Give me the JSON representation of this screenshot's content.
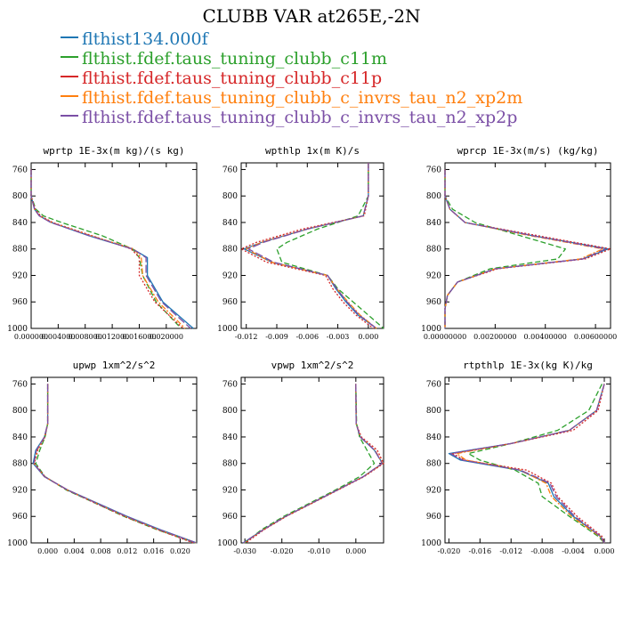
{
  "title": "CLUBB VAR at265E,-2N",
  "legend": [
    {
      "label": "flthist134.000f",
      "color": "#1f77b4",
      "dash": "solid"
    },
    {
      "label": "flthist.fdef.taus_tuning_clubb_c11m",
      "color": "#2ca02c",
      "dash": "dashed"
    },
    {
      "label": "flthist.fdef.taus_tuning_clubb_c11p",
      "color": "#d62728",
      "dash": "dotted"
    },
    {
      "label": "flthist.fdef.taus_tuning_clubb_c_invrs_tau_n2_xp2m",
      "color": "#ff7f0e",
      "dash": "dashdot"
    },
    {
      "label": "flthist.fdef.taus_tuning_clubb_c_invrs_tau_n2_xp2p",
      "color": "#7b4fa6",
      "dash": "longdash"
    }
  ],
  "chart_data": [
    {
      "type": "line",
      "title": "wprtp  1E-3x(m kg)/(s kg)",
      "ylabel": "",
      "ylim": [
        1000,
        750
      ],
      "yticks": [
        "760",
        "800",
        "840",
        "880",
        "920",
        "960",
        "1000"
      ],
      "yticks_values": [
        760,
        800,
        840,
        880,
        920,
        960,
        1000
      ],
      "xlim": [
        0,
        0.0245
      ],
      "xticks": [
        "0.000000",
        "0.004000",
        "0.008000",
        "0.012000",
        "0.016000",
        "0.020000"
      ],
      "xticks_values": [
        0,
        0.004,
        0.008,
        0.012,
        0.016,
        0.02
      ],
      "y": [
        760,
        800,
        820,
        830,
        840,
        860,
        880,
        893,
        920,
        960,
        1000
      ],
      "series": [
        {
          "values": [
            0,
            0,
            0.0005,
            0.0012,
            0.003,
            0.0085,
            0.015,
            0.0172,
            0.0172,
            0.0195,
            0.024
          ]
        },
        {
          "values": [
            0,
            0,
            0.0007,
            0.0018,
            0.0045,
            0.0105,
            0.015,
            0.016,
            0.0165,
            0.0185,
            0.0222
          ]
        },
        {
          "values": [
            0,
            0,
            0.0006,
            0.0014,
            0.0032,
            0.009,
            0.0148,
            0.016,
            0.016,
            0.0183,
            0.0225
          ]
        },
        {
          "values": [
            0,
            0,
            0.0005,
            0.0012,
            0.003,
            0.0088,
            0.0152,
            0.0163,
            0.0165,
            0.0188,
            0.0228
          ]
        },
        {
          "values": [
            0,
            0,
            0.0005,
            0.0012,
            0.0029,
            0.0086,
            0.015,
            0.017,
            0.017,
            0.0193,
            0.0236
          ]
        }
      ]
    },
    {
      "type": "line",
      "title": "wpthlp  1x(m K)/s",
      "ylim": [
        1000,
        750
      ],
      "yticks": [
        "760",
        "800",
        "840",
        "880",
        "920",
        "960",
        "1000"
      ],
      "yticks_values": [
        760,
        800,
        840,
        880,
        920,
        960,
        1000
      ],
      "xlim": [
        -0.0125,
        0.0015
      ],
      "xticks": [
        "-0.012",
        "-0.009",
        "-0.006",
        "-0.003",
        "0.000"
      ],
      "xticks_values": [
        -0.012,
        -0.009,
        -0.006,
        -0.003,
        0.0
      ],
      "y": [
        750,
        800,
        830,
        850,
        870,
        880,
        900,
        920,
        940,
        960,
        980,
        1000
      ],
      "series": [
        {
          "values": [
            0,
            0,
            -0.0005,
            -0.006,
            -0.0105,
            -0.0122,
            -0.0095,
            -0.004,
            -0.0032,
            -0.0022,
            -0.001,
            0.0008
          ]
        },
        {
          "values": [
            0,
            0,
            -0.001,
            -0.005,
            -0.008,
            -0.009,
            -0.0085,
            -0.004,
            -0.003,
            -0.0015,
            0.0,
            0.0015
          ]
        },
        {
          "values": [
            0,
            0,
            -0.0004,
            -0.0065,
            -0.011,
            -0.0125,
            -0.01,
            -0.0042,
            -0.0035,
            -0.0025,
            -0.0012,
            0.0005
          ]
        },
        {
          "values": [
            0,
            0,
            -0.0005,
            -0.006,
            -0.0105,
            -0.012,
            -0.0095,
            -0.004,
            -0.0031,
            -0.002,
            -0.0008,
            0.0008
          ]
        },
        {
          "values": [
            0,
            0,
            -0.0005,
            -0.006,
            -0.0103,
            -0.0118,
            -0.0093,
            -0.004,
            -0.0031,
            -0.0021,
            -0.0009,
            0.0008
          ]
        }
      ]
    },
    {
      "type": "line",
      "title": "wprcp  1E-3x(m/s) (kg/kg)",
      "ylim": [
        1000,
        750
      ],
      "yticks": [
        "760",
        "800",
        "840",
        "880",
        "920",
        "960",
        "1000"
      ],
      "yticks_values": [
        760,
        800,
        840,
        880,
        920,
        960,
        1000
      ],
      "xlim": [
        0,
        0.0066
      ],
      "xticks": [
        "0.00000000",
        "0.00200000",
        "0.00400000",
        "0.00600000"
      ],
      "xticks_values": [
        0,
        0.002,
        0.004,
        0.006
      ],
      "y": [
        760,
        800,
        820,
        840,
        860,
        880,
        895,
        910,
        930,
        950,
        970,
        1000
      ],
      "series": [
        {
          "values": [
            0,
            0,
            0.0002,
            0.0008,
            0.0035,
            0.0065,
            0.0055,
            0.002,
            0.0005,
            0.0001,
            0,
            0
          ]
        },
        {
          "values": [
            0,
            0,
            0.0003,
            0.0012,
            0.003,
            0.0048,
            0.0045,
            0.0018,
            0.0005,
            0.0001,
            0,
            0
          ]
        },
        {
          "values": [
            0,
            0,
            0.0002,
            0.0008,
            0.0037,
            0.0066,
            0.0056,
            0.0021,
            0.0005,
            0.0001,
            0,
            0
          ]
        },
        {
          "values": [
            0,
            0,
            0.0002,
            0.0008,
            0.0034,
            0.0063,
            0.0054,
            0.002,
            0.0005,
            0.0001,
            0,
            0
          ]
        },
        {
          "values": [
            0,
            0,
            0.0002,
            0.0008,
            0.0035,
            0.0064,
            0.0055,
            0.002,
            0.0005,
            0.0001,
            0,
            0
          ]
        }
      ]
    },
    {
      "type": "line",
      "title": "upwp  1xm^2/s^2",
      "ylim": [
        1000,
        750
      ],
      "yticks": [
        "760",
        "800",
        "840",
        "880",
        "920",
        "960",
        "1000"
      ],
      "yticks_values": [
        760,
        800,
        840,
        880,
        920,
        960,
        1000
      ],
      "xlim": [
        -0.0025,
        0.0225
      ],
      "xticks": [
        "0.000",
        "0.004",
        "0.008",
        "0.012",
        "0.016",
        "0.020"
      ],
      "xticks_values": [
        0,
        0.004,
        0.008,
        0.012,
        0.016,
        0.02
      ],
      "y": [
        760,
        820,
        840,
        860,
        880,
        900,
        920,
        940,
        960,
        980,
        1000
      ],
      "series": [
        {
          "values": [
            0.0,
            0.0,
            -0.0005,
            -0.0018,
            -0.0022,
            -0.0005,
            0.003,
            0.0075,
            0.012,
            0.017,
            0.0225
          ]
        },
        {
          "values": [
            0.0,
            0.0,
            -0.0004,
            -0.0012,
            -0.0018,
            -0.0004,
            0.0028,
            0.0072,
            0.0115,
            0.0165,
            0.0222
          ]
        },
        {
          "values": [
            0.0,
            0.0,
            -0.0004,
            -0.0015,
            -0.002,
            -0.0004,
            0.0029,
            0.0072,
            0.0116,
            0.0166,
            0.022
          ]
        },
        {
          "values": [
            0.0,
            0.0,
            -0.0005,
            -0.0016,
            -0.0021,
            -0.0005,
            0.003,
            0.0074,
            0.0118,
            0.0168,
            0.0224
          ]
        },
        {
          "values": [
            0.0,
            0.0,
            -0.0005,
            -0.0017,
            -0.0021,
            -0.0005,
            0.003,
            0.0074,
            0.0119,
            0.0169,
            0.0224
          ]
        }
      ]
    },
    {
      "type": "line",
      "title": "vpwp  1xm^2/s^2",
      "ylim": [
        1000,
        750
      ],
      "yticks": [
        "760",
        "800",
        "840",
        "880",
        "920",
        "960",
        "1000"
      ],
      "yticks_values": [
        760,
        800,
        840,
        880,
        920,
        960,
        1000
      ],
      "xlim": [
        -0.031,
        0.0075
      ],
      "xticks": [
        "-0.030",
        "-0.020",
        "-0.010",
        "0.000"
      ],
      "xticks_values": [
        -0.03,
        -0.02,
        -0.01,
        0.0
      ],
      "y": [
        760,
        820,
        840,
        860,
        880,
        900,
        920,
        940,
        960,
        980,
        1000
      ],
      "series": [
        {
          "values": [
            0.0,
            0.0001,
            0.0012,
            0.005,
            0.0072,
            0.002,
            -0.005,
            -0.012,
            -0.019,
            -0.025,
            -0.0305
          ]
        },
        {
          "values": [
            0.0,
            0.0002,
            0.001,
            0.003,
            0.005,
            0.001,
            -0.0055,
            -0.0125,
            -0.0195,
            -0.0255,
            -0.03
          ]
        },
        {
          "values": [
            0.0,
            0.0001,
            0.0015,
            0.0058,
            0.0075,
            0.0022,
            -0.0048,
            -0.0118,
            -0.0188,
            -0.0248,
            -0.0298
          ]
        },
        {
          "values": [
            0.0,
            0.0001,
            0.0012,
            0.0052,
            0.0072,
            0.002,
            -0.005,
            -0.012,
            -0.019,
            -0.025,
            -0.0303
          ]
        },
        {
          "values": [
            0.0,
            0.0001,
            0.0012,
            0.0051,
            0.0071,
            0.002,
            -0.005,
            -0.012,
            -0.019,
            -0.025,
            -0.0304
          ]
        }
      ]
    },
    {
      "type": "line",
      "title": "rtpthlp  1E-3x(kg K)/kg",
      "ylim": [
        1000,
        750
      ],
      "yticks": [
        "760",
        "800",
        "840",
        "880",
        "920",
        "960",
        "1000"
      ],
      "yticks_values": [
        760,
        800,
        840,
        880,
        920,
        960,
        1000
      ],
      "xlim": [
        -0.0205,
        0.0008
      ],
      "xticks": [
        "-0.020",
        "-0.016",
        "-0.012",
        "-0.008",
        "-0.004",
        "0.000"
      ],
      "xticks_values": [
        -0.02,
        -0.016,
        -0.012,
        -0.008,
        -0.004,
        0.0
      ],
      "y": [
        760,
        800,
        830,
        850,
        865,
        875,
        890,
        910,
        930,
        960,
        990,
        1000
      ],
      "series": [
        {
          "values": [
            0.0,
            -0.001,
            -0.0045,
            -0.012,
            -0.02,
            -0.0185,
            -0.011,
            -0.0072,
            -0.0065,
            -0.004,
            -0.0005,
            0.0
          ]
        },
        {
          "values": [
            -0.0003,
            -0.002,
            -0.006,
            -0.012,
            -0.0175,
            -0.016,
            -0.0115,
            -0.0085,
            -0.008,
            -0.0045,
            -0.0008,
            0.0
          ]
        },
        {
          "values": [
            0.0,
            -0.0008,
            -0.004,
            -0.012,
            -0.0195,
            -0.018,
            -0.01,
            -0.0068,
            -0.006,
            -0.0035,
            -0.0003,
            0.0
          ]
        },
        {
          "values": [
            0.0,
            -0.001,
            -0.0045,
            -0.012,
            -0.019,
            -0.0178,
            -0.0108,
            -0.0075,
            -0.0068,
            -0.0042,
            -0.0006,
            0.0
          ]
        },
        {
          "values": [
            0.0,
            -0.001,
            -0.0045,
            -0.012,
            -0.0198,
            -0.0182,
            -0.0108,
            -0.007,
            -0.0062,
            -0.0038,
            -0.0005,
            0.0
          ]
        }
      ]
    }
  ]
}
